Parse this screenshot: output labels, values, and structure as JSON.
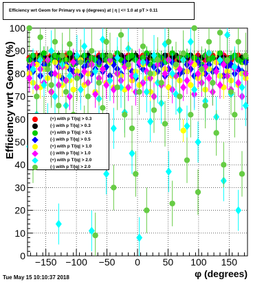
{
  "chart_data": {
    "type": "scatter",
    "title": "Efficiency wrt Geom for Primary vs φ (degrees) at | η | <= 1.0 at pT > 0.11",
    "xlabel": "φ (degrees)",
    "ylabel": "Efficiency wrt Geom (%)",
    "xlim": [
      -180,
      180
    ],
    "ylim": [
      0,
      100
    ],
    "x_ticks": [
      "-150",
      "-100",
      "-50",
      "0",
      "50",
      "100",
      "150"
    ],
    "y_ticks": [
      "0",
      "10",
      "20",
      "30",
      "40",
      "50",
      "60",
      "70",
      "80",
      "90",
      "100"
    ],
    "grid": true,
    "legend_position": "middle-left",
    "x_bins": [
      -177,
      -171,
      -165,
      -159,
      -153,
      -147,
      -141,
      -135,
      -129,
      -123,
      -117,
      -111,
      -105,
      -99,
      -93,
      -87,
      -81,
      -75,
      -69,
      -63,
      -57,
      -51,
      -45,
      -39,
      -33,
      -27,
      -21,
      -15,
      -9,
      -3,
      3,
      9,
      15,
      21,
      27,
      33,
      39,
      45,
      51,
      57,
      63,
      69,
      75,
      81,
      87,
      93,
      99,
      105,
      111,
      117,
      123,
      129,
      135,
      141,
      147,
      153,
      159,
      165,
      171,
      177
    ],
    "series": [
      {
        "name": "(+) with p T/|q| > 0.3",
        "color": "#ff0000",
        "marker": "circle",
        "error": 2,
        "values": [
          87,
          86,
          88,
          87,
          86,
          87,
          88,
          87,
          86,
          87,
          88,
          86,
          87,
          87,
          86,
          88,
          87,
          86,
          87,
          88,
          87,
          86,
          87,
          87,
          88,
          86,
          87,
          88,
          87,
          86,
          87,
          88,
          86,
          87,
          87,
          88,
          86,
          87,
          88,
          87,
          86,
          87,
          88,
          87,
          86,
          87,
          88,
          87,
          86,
          87,
          88,
          86,
          87,
          88,
          87,
          86,
          87,
          88,
          87,
          86
        ]
      },
      {
        "name": "(-) with p T/|q| > 0.3",
        "color": "#000000",
        "marker": "circle",
        "error": 2,
        "values": [
          86,
          87,
          86,
          88,
          87,
          86,
          87,
          86,
          88,
          87,
          86,
          87,
          88,
          86,
          87,
          86,
          88,
          87,
          86,
          87,
          86,
          88,
          87,
          86,
          87,
          88,
          87,
          86,
          87,
          88,
          86,
          87,
          86,
          88,
          87,
          86,
          87,
          88,
          86,
          87,
          88,
          86,
          87,
          86,
          88,
          87,
          86,
          87,
          88,
          86,
          87,
          86,
          88,
          87,
          86,
          87,
          88,
          86,
          87,
          86
        ]
      },
      {
        "name": "(+) with p T/|q| > 0.5",
        "color": "#00cc00",
        "marker": "circle",
        "error": 3,
        "values": [
          86,
          88,
          85,
          87,
          89,
          84,
          86,
          88,
          87,
          85,
          86,
          89,
          84,
          87,
          86,
          88,
          85,
          87,
          86,
          84,
          88,
          86,
          87,
          85,
          89,
          86,
          84,
          87,
          88,
          86,
          85,
          87,
          89,
          84,
          86,
          88,
          87,
          85,
          86,
          89,
          84,
          87,
          86,
          88,
          85,
          87,
          86,
          84,
          88,
          86,
          87,
          85,
          89,
          86,
          84,
          87,
          88,
          86,
          85,
          87
        ]
      },
      {
        "name": "(-) with p T/|q| > 0.5",
        "color": "#0000ff",
        "marker": "diamond",
        "error": 4,
        "values": [
          83,
          81,
          85,
          79,
          84,
          82,
          80,
          85,
          83,
          78,
          84,
          82,
          81,
          85,
          79,
          83,
          84,
          80,
          82,
          85,
          81,
          83,
          79,
          84,
          82,
          80,
          85,
          83,
          81,
          78,
          84,
          82,
          85,
          80,
          83,
          81,
          84,
          79,
          82,
          85,
          83,
          80,
          81,
          84,
          82,
          79,
          85,
          83,
          80,
          84,
          81,
          82,
          85,
          79,
          83,
          84,
          80,
          82,
          81,
          85
        ]
      },
      {
        "name": "(+) with p T/|q| > 1.0",
        "color": "#ffff00",
        "marker": "circle",
        "error": 5,
        "values": [
          80,
          76,
          84,
          74,
          82,
          78,
          72,
          85,
          79,
          75,
          83,
          77,
          73,
          81,
          86,
          75,
          80,
          84,
          72,
          78,
          82,
          76,
          85,
          74,
          80,
          79,
          73,
          83,
          77,
          81,
          75,
          84,
          78,
          72,
          80,
          86,
          76,
          82,
          74,
          79,
          83,
          77,
          55,
          81,
          75,
          84,
          78,
          80,
          73,
          82,
          76,
          85,
          79,
          74,
          81,
          77,
          83,
          75,
          80,
          78
        ]
      },
      {
        "name": "(-) with p T/|q| > 1.0",
        "color": "#ff00ff",
        "marker": "diamond",
        "error": 6,
        "values": [
          78,
          84,
          74,
          82,
          76,
          86,
          72,
          80,
          75,
          83,
          77,
          70,
          85,
          79,
          73,
          81,
          76,
          84,
          71,
          78,
          82,
          75,
          86,
          73,
          80,
          77,
          83,
          74,
          79,
          72,
          85,
          76,
          81,
          78,
          70,
          84,
          75,
          80,
          86,
          73,
          79,
          82,
          74,
          77,
          85,
          71,
          80,
          76,
          83,
          78,
          72,
          81,
          75,
          84,
          79,
          73,
          82,
          76,
          70,
          80
        ]
      },
      {
        "name": "(+) with p T/|q| > 2.0",
        "color": "#00ffff",
        "marker": "diamond",
        "error": 9,
        "values": [
          48,
          82,
          62,
          86,
          75,
          58,
          90,
          70,
          14,
          84,
          66,
          79,
          52,
          88,
          73,
          92,
          60,
          11,
          81,
          69,
          95,
          36,
          77,
          56,
          87,
          74,
          63,
          91,
          45,
          79,
          8,
          85,
          72,
          59,
          88,
          76,
          67,
          93,
          37,
          80,
          71,
          64,
          86,
          57,
          94,
          73,
          50,
          82,
          68,
          89,
          76,
          61,
          86,
          33,
          97,
          71,
          83,
          20,
          74,
          66
        ]
      },
      {
        "name": "(-) with p T/|q| > 2.0",
        "color": "#66cc44",
        "marker": "circle",
        "error": 10,
        "values": [
          100,
          42,
          70,
          96,
          60,
          82,
          75,
          94,
          66,
          88,
          72,
          93,
          62,
          78,
          85,
          56,
          70,
          90,
          9,
          76,
          65,
          94,
          88,
          30,
          74,
          97,
          62,
          84,
          56,
          36,
          72,
          92,
          20,
          80,
          64,
          86,
          76,
          58,
          94,
          23,
          84,
          70,
          89,
          42,
          62,
          100,
          28,
          82,
          66,
          94,
          76,
          54,
          98,
          40,
          86,
          72,
          62,
          94,
          36,
          88
        ]
      }
    ]
  },
  "stamp": "Tue May 15 10:10:37 2018"
}
